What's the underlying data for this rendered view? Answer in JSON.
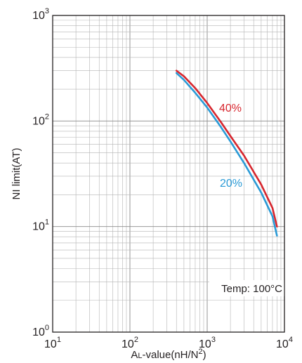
{
  "chart_data": {
    "type": "line",
    "x_scale": "log",
    "y_scale": "log",
    "xlim": [
      10,
      10000
    ],
    "ylim": [
      1,
      1000
    ],
    "grid": true,
    "xlabel": {
      "prefix": "A",
      "prefix_sub": "L",
      "main": "-value(nH/N",
      "sup": "2",
      "suffix": ")"
    },
    "ylabel": "NI limit(AT)",
    "x_ticks": [
      {
        "base": "10",
        "exp": "1"
      },
      {
        "base": "10",
        "exp": "2"
      },
      {
        "base": "10",
        "exp": "3"
      },
      {
        "base": "10",
        "exp": "4"
      }
    ],
    "y_ticks": [
      {
        "base": "10",
        "exp": "0"
      },
      {
        "base": "10",
        "exp": "1"
      },
      {
        "base": "10",
        "exp": "2"
      },
      {
        "base": "10",
        "exp": "3"
      }
    ],
    "annotation": "Temp: 100°C",
    "series": [
      {
        "name": "40%",
        "color": "#d7262e",
        "points": [
          [
            400,
            300
          ],
          [
            500,
            265
          ],
          [
            700,
            205
          ],
          [
            1000,
            148
          ],
          [
            1500,
            98
          ],
          [
            2000,
            72
          ],
          [
            3000,
            47
          ],
          [
            5000,
            25
          ],
          [
            7000,
            15
          ],
          [
            8000,
            10
          ]
        ]
      },
      {
        "name": "20%",
        "color": "#2a9ad6",
        "points": [
          [
            400,
            285
          ],
          [
            500,
            245
          ],
          [
            700,
            185
          ],
          [
            1000,
            134
          ],
          [
            1500,
            88
          ],
          [
            2000,
            64
          ],
          [
            3000,
            40
          ],
          [
            5000,
            21
          ],
          [
            7000,
            12.5
          ],
          [
            8000,
            8.2
          ]
        ]
      }
    ]
  }
}
